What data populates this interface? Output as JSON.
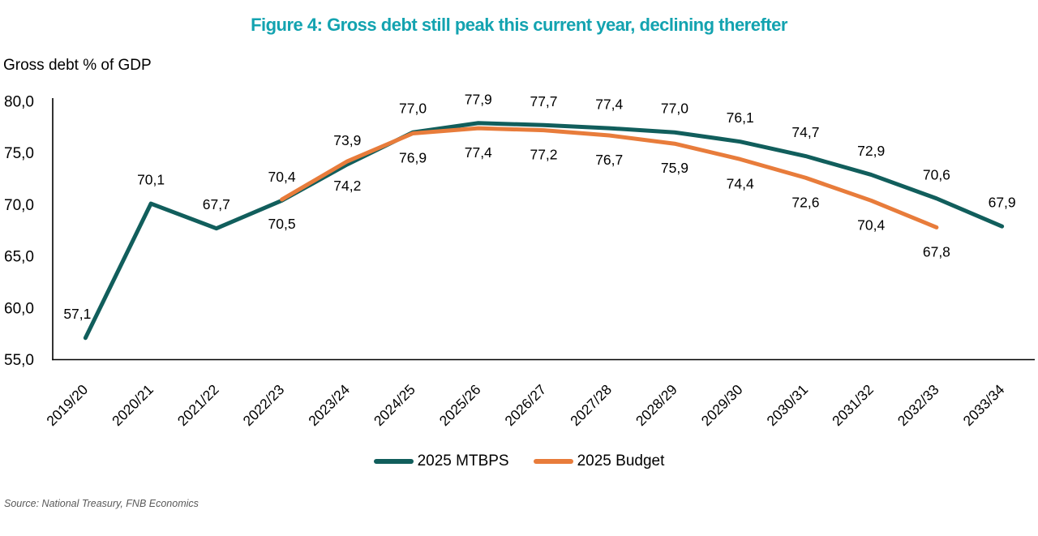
{
  "title": "Figure 4: Gross debt still peak this current year, declining therefter",
  "axis_title": "Gross debt % of GDP",
  "source": "Source: National Treasury, FNB Economics",
  "colors": {
    "title": "#13A3B0",
    "mtbps": "#115E5C",
    "budget": "#E87C3B",
    "axis": "#000000",
    "label_text": "#000000",
    "source_text": "#595959"
  },
  "legend": {
    "items": [
      {
        "label": "2025 MTBPS",
        "color_key": "mtbps"
      },
      {
        "label": "2025 Budget",
        "color_key": "budget"
      }
    ]
  },
  "chart_data": {
    "type": "line",
    "title": "Figure 4: Gross debt still peak this current year, declining therefter",
    "ylabel": "Gross debt % of GDP",
    "xlabel": "",
    "ylim": [
      55,
      80
    ],
    "ytick_step": 5,
    "yticks": [
      "80,0",
      "75,0",
      "70,0",
      "65,0",
      "60,0",
      "55,0"
    ],
    "decimal_separator": ",",
    "grid": false,
    "legend_position": "bottom",
    "data_labels": true,
    "categories": [
      "2019/20",
      "2020/21",
      "2021/22",
      "2022/23",
      "2023/24",
      "2024/25",
      "2025/26",
      "2026/27",
      "2027/28",
      "2028/29",
      "2029/30",
      "2030/31",
      "2031/32",
      "2032/33",
      "2033/34"
    ],
    "series": [
      {
        "name": "2025 MTBPS",
        "color_key": "mtbps",
        "label_position": "above",
        "values": [
          57.1,
          70.1,
          67.7,
          70.4,
          73.9,
          77.0,
          77.9,
          77.7,
          77.4,
          77.0,
          76.1,
          74.7,
          72.9,
          70.6,
          67.9
        ]
      },
      {
        "name": "2025 Budget",
        "color_key": "budget",
        "label_position": "below",
        "values": [
          null,
          null,
          null,
          70.5,
          74.2,
          76.9,
          77.4,
          77.2,
          76.7,
          75.9,
          74.4,
          72.6,
          70.4,
          67.8,
          null
        ]
      }
    ]
  }
}
